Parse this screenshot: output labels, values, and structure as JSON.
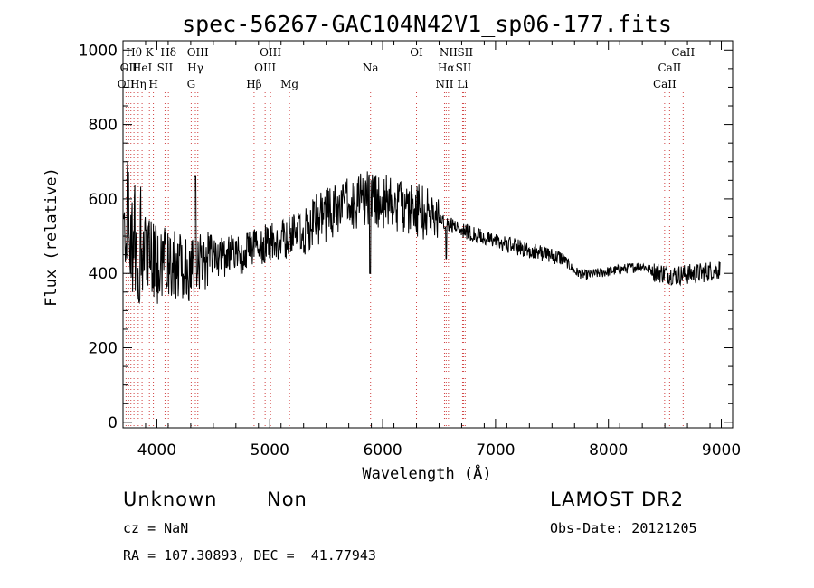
{
  "chart_data": {
    "type": "line",
    "title": "spec-56267-GAC104N42V1_sp06-177.fits",
    "xlabel": "Wavelength (Å)",
    "ylabel": "Flux (relative)",
    "xlim": [
      3700,
      9100
    ],
    "ylim": [
      -15,
      1025
    ],
    "xticks": [
      "4000",
      "5000",
      "6000",
      "7000",
      "8000",
      "9000"
    ],
    "yticks": [
      "0",
      "200",
      "400",
      "600",
      "800",
      "1000"
    ],
    "grid": false,
    "series": [
      {
        "color": "#000000",
        "anchors": [
          [
            3700,
            520
          ],
          [
            3720,
            600
          ],
          [
            3750,
            540
          ],
          [
            3800,
            500
          ],
          [
            3850,
            470
          ],
          [
            3900,
            430
          ],
          [
            3950,
            440
          ],
          [
            4000,
            420
          ],
          [
            4050,
            420
          ],
          [
            4100,
            430
          ],
          [
            4200,
            420
          ],
          [
            4300,
            410
          ],
          [
            4400,
            430
          ],
          [
            4500,
            440
          ],
          [
            4600,
            445
          ],
          [
            4700,
            450
          ],
          [
            4800,
            455
          ],
          [
            4900,
            470
          ],
          [
            5000,
            480
          ],
          [
            5100,
            490
          ],
          [
            5200,
            500
          ],
          [
            5300,
            520
          ],
          [
            5400,
            540
          ],
          [
            5500,
            555
          ],
          [
            5600,
            570
          ],
          [
            5700,
            585
          ],
          [
            5800,
            600
          ],
          [
            5900,
            600
          ],
          [
            6000,
            595
          ],
          [
            6100,
            590
          ],
          [
            6200,
            580
          ],
          [
            6300,
            570
          ],
          [
            6400,
            560
          ],
          [
            6500,
            545
          ],
          [
            6600,
            530
          ],
          [
            6700,
            520
          ],
          [
            6800,
            505
          ],
          [
            6900,
            495
          ],
          [
            7000,
            485
          ],
          [
            7200,
            470
          ],
          [
            7400,
            455
          ],
          [
            7600,
            440
          ],
          [
            7700,
            405
          ],
          [
            7800,
            395
          ],
          [
            8000,
            405
          ],
          [
            8200,
            415
          ],
          [
            8300,
            420
          ],
          [
            8400,
            405
          ],
          [
            8600,
            395
          ],
          [
            8800,
            400
          ],
          [
            8950,
            410
          ]
        ]
      }
    ],
    "lines": [
      {
        "x": 3727,
        "labels": [
          {
            "row": 2,
            "text": "OII"
          }
        ]
      },
      {
        "x": 3750,
        "labels": [
          {
            "row": 1,
            "text": "OII"
          }
        ]
      },
      {
        "x": 3770,
        "labels": []
      },
      {
        "x": 3797,
        "labels": [
          {
            "row": 0,
            "text": "Hθ"
          }
        ]
      },
      {
        "x": 3835,
        "labels": [
          {
            "row": 2,
            "text": "Hη"
          }
        ]
      },
      {
        "x": 3869,
        "labels": [
          {
            "row": 1,
            "text": "HeI"
          }
        ]
      },
      {
        "x": 3934,
        "labels": [
          {
            "row": 0,
            "text": "K"
          }
        ]
      },
      {
        "x": 3969,
        "labels": [
          {
            "row": 2,
            "text": "H"
          }
        ]
      },
      {
        "x": 4072,
        "labels": [
          {
            "row": 1,
            "text": "SII"
          }
        ]
      },
      {
        "x": 4102,
        "labels": [
          {
            "row": 0,
            "text": "Hδ"
          }
        ]
      },
      {
        "x": 4304,
        "labels": [
          {
            "row": 2,
            "text": "G"
          }
        ]
      },
      {
        "x": 4341,
        "labels": [
          {
            "row": 1,
            "text": "Hγ"
          }
        ]
      },
      {
        "x": 4363,
        "labels": [
          {
            "row": 0,
            "text": "OIII"
          }
        ]
      },
      {
        "x": 4861,
        "labels": [
          {
            "row": 2,
            "text": "Hβ"
          }
        ]
      },
      {
        "x": 4959,
        "labels": [
          {
            "row": 1,
            "text": "OIII"
          }
        ]
      },
      {
        "x": 5007,
        "labels": [
          {
            "row": 0,
            "text": "OIII"
          }
        ]
      },
      {
        "x": 5175,
        "labels": [
          {
            "row": 2,
            "text": "Mg"
          }
        ]
      },
      {
        "x": 5893,
        "labels": [
          {
            "row": 1,
            "text": "Na"
          }
        ]
      },
      {
        "x": 6300,
        "labels": [
          {
            "row": 0,
            "text": "OI"
          }
        ]
      },
      {
        "x": 6548,
        "labels": [
          {
            "row": 2,
            "text": "NII"
          }
        ]
      },
      {
        "x": 6563,
        "labels": [
          {
            "row": 1,
            "text": "Hα"
          }
        ]
      },
      {
        "x": 6583,
        "labels": [
          {
            "row": 0,
            "text": "NII"
          }
        ]
      },
      {
        "x": 6708,
        "labels": [
          {
            "row": 2,
            "text": "Li"
          }
        ]
      },
      {
        "x": 6716,
        "labels": [
          {
            "row": 1,
            "text": "SII"
          }
        ]
      },
      {
        "x": 6731,
        "labels": [
          {
            "row": 0,
            "text": "SII"
          }
        ]
      },
      {
        "x": 8498,
        "labels": [
          {
            "row": 2,
            "text": "CaII"
          }
        ]
      },
      {
        "x": 8542,
        "labels": [
          {
            "row": 1,
            "text": "CaII"
          }
        ]
      },
      {
        "x": 8662,
        "labels": [
          {
            "row": 0,
            "text": "CaII"
          }
        ]
      }
    ]
  },
  "footer": {
    "classification": "Unknown",
    "subclass": "Non",
    "survey": "LAMOST DR2",
    "redshift": "cz = NaN",
    "obs_date": "Obs-Date: 20121205",
    "coords": "RA = 107.30893, DEC =  41.77943"
  },
  "colors": {
    "line_marker": "#d04040",
    "spectrum": "#000000"
  }
}
